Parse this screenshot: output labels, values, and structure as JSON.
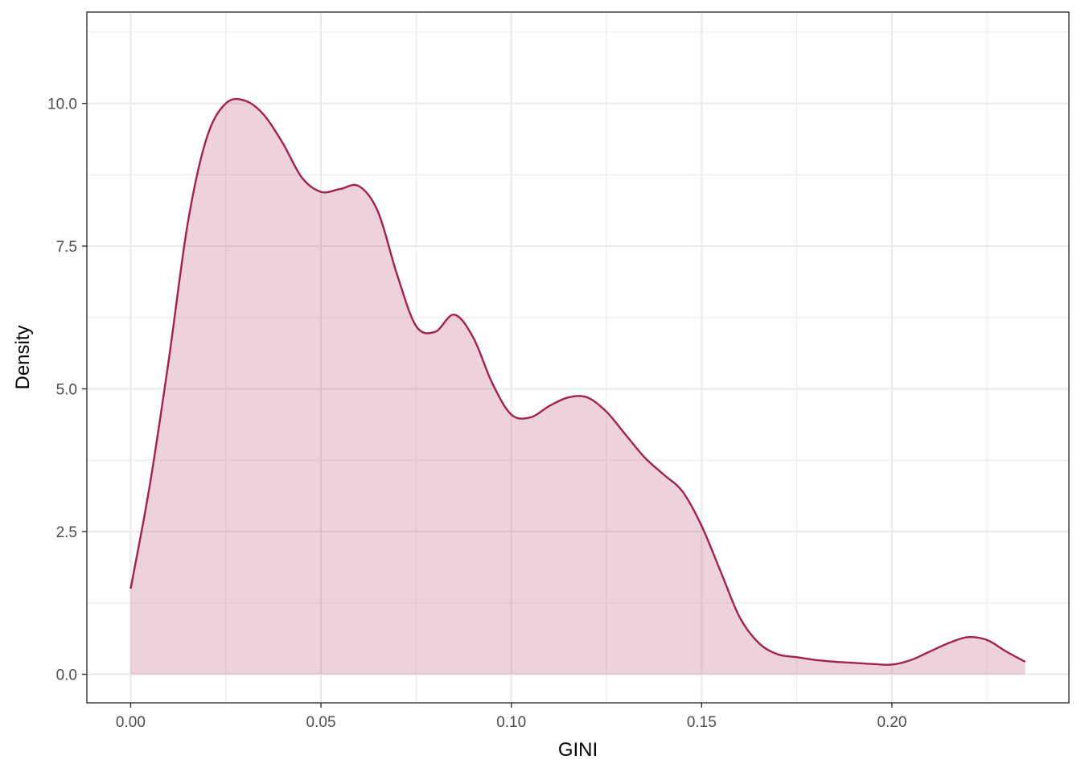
{
  "chart_data": {
    "type": "area",
    "title": "",
    "xlabel": "GINI",
    "ylabel": "Density",
    "xlim": [
      -0.0115,
      0.2465
    ],
    "ylim": [
      -0.5,
      11.6
    ],
    "x_ticks": [
      0.0,
      0.05,
      0.1,
      0.15,
      0.2
    ],
    "x_tick_labels": [
      "0.00",
      "0.05",
      "0.10",
      "0.15",
      "0.20"
    ],
    "x_minor_ticks": [
      0.025,
      0.075,
      0.125,
      0.175,
      0.225
    ],
    "y_ticks": [
      0.0,
      2.5,
      5.0,
      7.5,
      10.0
    ],
    "y_tick_labels": [
      "0.0",
      "2.5",
      "5.0",
      "7.5",
      "10.0"
    ],
    "y_minor_ticks": [
      1.25,
      3.75,
      6.25,
      8.75,
      11.25
    ],
    "grid": true,
    "colors": {
      "line": "#A3204F",
      "fill": "#A3204F",
      "fill_opacity": 0.2,
      "grid": "#EBEBEB",
      "panel_border": "#333333"
    },
    "x": [
      0.0,
      0.005,
      0.01,
      0.015,
      0.02,
      0.025,
      0.03,
      0.035,
      0.04,
      0.045,
      0.05,
      0.055,
      0.06,
      0.065,
      0.07,
      0.075,
      0.08,
      0.085,
      0.09,
      0.095,
      0.1,
      0.105,
      0.11,
      0.115,
      0.12,
      0.125,
      0.13,
      0.135,
      0.14,
      0.145,
      0.15,
      0.155,
      0.16,
      0.165,
      0.17,
      0.175,
      0.18,
      0.185,
      0.19,
      0.195,
      0.2,
      0.205,
      0.21,
      0.215,
      0.22,
      0.225,
      0.23,
      0.235
    ],
    "y": [
      1.5,
      3.3,
      5.5,
      7.9,
      9.4,
      10.0,
      10.05,
      9.8,
      9.3,
      8.7,
      8.45,
      8.5,
      8.55,
      8.1,
      7.0,
      6.1,
      6.0,
      6.3,
      5.9,
      5.1,
      4.55,
      4.5,
      4.7,
      4.85,
      4.85,
      4.6,
      4.2,
      3.8,
      3.5,
      3.2,
      2.6,
      1.8,
      1.0,
      0.55,
      0.35,
      0.3,
      0.25,
      0.22,
      0.2,
      0.18,
      0.17,
      0.25,
      0.4,
      0.55,
      0.65,
      0.6,
      0.4,
      0.22
    ]
  }
}
